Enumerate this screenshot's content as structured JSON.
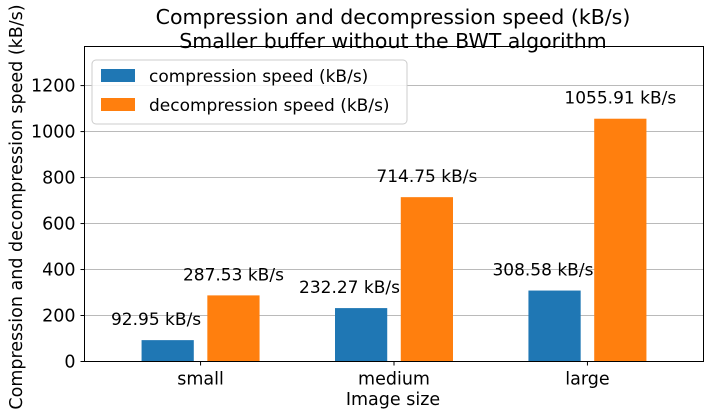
{
  "chart_data": {
    "type": "bar",
    "title": "Compression and decompression speed (kB/s)",
    "subtitle": "Smaller buffer without the BWT algorithm",
    "xlabel": "Image size",
    "ylabel": "Compression and decompression speed (kB/s)",
    "categories": [
      "small",
      "medium",
      "large"
    ],
    "series": [
      {
        "name": "compression speed (kB/s)",
        "color": "#1f77b4",
        "values": [
          92.95,
          232.27,
          308.58
        ],
        "labels": [
          "92.95 kB/s",
          "232.27 kB/s",
          "308.58 kB/s"
        ]
      },
      {
        "name": "decompression speed (kB/s)",
        "color": "#ff7f0e",
        "values": [
          287.53,
          714.75,
          1055.91
        ],
        "labels": [
          "287.53 kB/s",
          "714.75 kB/s",
          "1055.91 kB/s"
        ]
      }
    ],
    "ylim": [
      0,
      1370
    ],
    "yticks": [
      0,
      200,
      400,
      600,
      800,
      1000,
      1200
    ],
    "grid": "horizontal",
    "legend_position": "top-left"
  }
}
